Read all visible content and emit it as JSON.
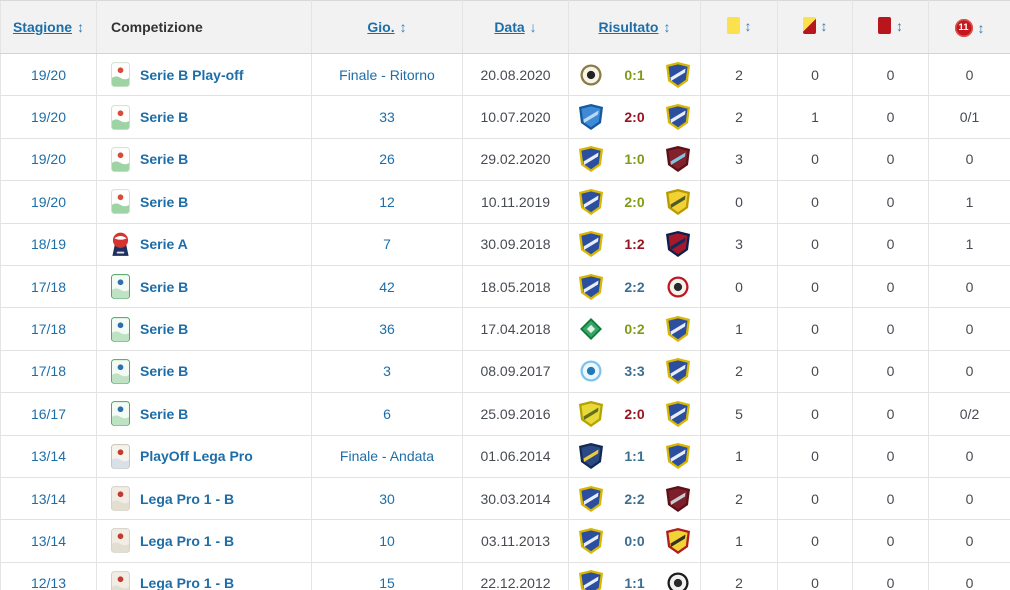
{
  "colors": {
    "link_blue": "#1d6ea8",
    "win_green": "#7f9c16",
    "draw_blue": "#3c6e91",
    "loss_red": "#971420",
    "yellow_card": "#fbe14b",
    "red_card": "#b8151c",
    "penalty_red": "#c4161c",
    "header_bg": "#f2f2f2"
  },
  "table": {
    "header": {
      "season_label": "Stagione",
      "competition_label": "Competizione",
      "matchday_label": "Gio.",
      "date_label": "Data",
      "result_label": "Risultato",
      "penalty_label": "11",
      "sort_both": "↕",
      "sort_down": "↓"
    },
    "rows": [
      {
        "season": "19/20",
        "competition": {
          "name": "Serie B Play-off",
          "icon": {
            "icon": "serie-b-2019-logo-icon",
            "shape": "badge",
            "colors": [
              "#cfe0cf",
              "#ffffff",
              "#9ed3a4",
              "#d84b3a"
            ]
          }
        },
        "matchday": "Finale - Ritorno",
        "date": "20.08.2020",
        "match": {
          "home": {
            "icon": "spezia-crest-icon",
            "shape": "circle",
            "colors": [
              "#8a7a45",
              "#f7f3e8",
              "#222222"
            ]
          },
          "score": "0:1",
          "outcome": "win",
          "away": {
            "icon": "frosinone-crest-icon",
            "shape": "shield",
            "colors": [
              "#d9b600",
              "#2b4f9e",
              "#e8eef8"
            ]
          }
        },
        "cards": {
          "yellow": "2",
          "yellow_red": "0",
          "red": "0",
          "penalty": "0"
        }
      },
      {
        "season": "19/20",
        "competition": {
          "name": "Serie B",
          "icon": {
            "icon": "serie-b-2019-logo-icon",
            "shape": "badge",
            "colors": [
              "#cfe0cf",
              "#ffffff",
              "#9ed3a4",
              "#d84b3a"
            ]
          }
        },
        "matchday": "33",
        "date": "10.07.2020",
        "match": {
          "home": {
            "icon": "empoli-crest-icon",
            "shape": "shield",
            "colors": [
              "#155a9e",
              "#3f8ad6",
              "#bcd9f2"
            ]
          },
          "score": "2:0",
          "outcome": "loss",
          "away": {
            "icon": "frosinone-crest-icon",
            "shape": "shield",
            "colors": [
              "#d9b600",
              "#2b4f9e",
              "#e8eef8"
            ]
          }
        },
        "cards": {
          "yellow": "2",
          "yellow_red": "1",
          "red": "0",
          "penalty": "0/1"
        }
      },
      {
        "season": "19/20",
        "competition": {
          "name": "Serie B",
          "icon": {
            "icon": "serie-b-2019-logo-icon",
            "shape": "badge",
            "colors": [
              "#cfe0cf",
              "#ffffff",
              "#9ed3a4",
              "#d84b3a"
            ]
          }
        },
        "matchday": "26",
        "date": "29.02.2020",
        "match": {
          "home": {
            "icon": "frosinone-crest-icon",
            "shape": "shield",
            "colors": [
              "#d9b600",
              "#2b4f9e",
              "#e8eef8"
            ]
          },
          "score": "1:0",
          "outcome": "win",
          "away": {
            "icon": "salernitana-crest-icon",
            "shape": "shield",
            "colors": [
              "#5c1017",
              "#82222c",
              "#7fc5e0"
            ]
          }
        },
        "cards": {
          "yellow": "3",
          "yellow_red": "0",
          "red": "0",
          "penalty": "0"
        }
      },
      {
        "season": "19/20",
        "competition": {
          "name": "Serie B",
          "icon": {
            "icon": "serie-b-2019-logo-icon",
            "shape": "badge",
            "colors": [
              "#cfe0cf",
              "#ffffff",
              "#9ed3a4",
              "#d84b3a"
            ]
          }
        },
        "matchday": "12",
        "date": "10.11.2019",
        "match": {
          "home": {
            "icon": "frosinone-crest-icon",
            "shape": "shield",
            "colors": [
              "#d9b600",
              "#2b4f9e",
              "#e8eef8"
            ]
          },
          "score": "2:0",
          "outcome": "win",
          "away": {
            "icon": "chievo-verona-crest-icon",
            "shape": "shield",
            "colors": [
              "#b99a00",
              "#f0d234",
              "#50572a"
            ]
          }
        },
        "cards": {
          "yellow": "0",
          "yellow_red": "0",
          "red": "0",
          "penalty": "1"
        }
      },
      {
        "season": "18/19",
        "competition": {
          "name": "Serie A",
          "icon": {
            "icon": "serie-a-logo-icon",
            "shape": "seriea",
            "colors": [
              "#1c2f5e",
              "#d5342f",
              "#ffffff"
            ]
          }
        },
        "matchday": "7",
        "date": "30.09.2018",
        "match": {
          "home": {
            "icon": "frosinone-crest-icon",
            "shape": "shield",
            "colors": [
              "#d9b600",
              "#2b4f9e",
              "#e8eef8"
            ]
          },
          "score": "1:2",
          "outcome": "loss",
          "away": {
            "icon": "genoa-crest-icon",
            "shape": "shield",
            "colors": [
              "#0e1f4d",
              "#a5192b",
              "#152a5c"
            ]
          }
        },
        "cards": {
          "yellow": "3",
          "yellow_red": "0",
          "red": "0",
          "penalty": "1"
        }
      },
      {
        "season": "17/18",
        "competition": {
          "name": "Serie B",
          "icon": {
            "icon": "serie-b-2017-logo-icon",
            "shape": "badge",
            "colors": [
              "#4aa35c",
              "#f4fbf4",
              "#bfe2c4",
              "#2f6fb0"
            ]
          }
        },
        "matchday": "42",
        "date": "18.05.2018",
        "match": {
          "home": {
            "icon": "frosinone-crest-icon",
            "shape": "shield",
            "colors": [
              "#d9b600",
              "#2b4f9e",
              "#e8eef8"
            ]
          },
          "score": "2:2",
          "outcome": "draw",
          "away": {
            "icon": "foggia-crest-icon",
            "shape": "circle",
            "colors": [
              "#c0181f",
              "#f5f3ee",
              "#2a2a2a"
            ]
          }
        },
        "cards": {
          "yellow": "0",
          "yellow_red": "0",
          "red": "0",
          "penalty": "0"
        }
      },
      {
        "season": "17/18",
        "competition": {
          "name": "Serie B",
          "icon": {
            "icon": "serie-b-2017-logo-icon",
            "shape": "badge",
            "colors": [
              "#4aa35c",
              "#f4fbf4",
              "#bfe2c4",
              "#2f6fb0"
            ]
          }
        },
        "matchday": "36",
        "date": "17.04.2018",
        "match": {
          "home": {
            "icon": "avellino-crest-icon",
            "shape": "diamond",
            "colors": [
              "#0f7a3c",
              "#35a866",
              "#e6efe6"
            ]
          },
          "score": "0:2",
          "outcome": "win",
          "away": {
            "icon": "frosinone-crest-icon",
            "shape": "shield",
            "colors": [
              "#d9b600",
              "#2b4f9e",
              "#e8eef8"
            ]
          }
        },
        "cards": {
          "yellow": "1",
          "yellow_red": "0",
          "red": "0",
          "penalty": "0"
        }
      },
      {
        "season": "17/18",
        "competition": {
          "name": "Serie B",
          "icon": {
            "icon": "serie-b-2017-logo-icon",
            "shape": "badge",
            "colors": [
              "#4aa35c",
              "#f4fbf4",
              "#bfe2c4",
              "#2f6fb0"
            ]
          }
        },
        "matchday": "3",
        "date": "08.09.2017",
        "match": {
          "home": {
            "icon": "pescara-crest-icon",
            "shape": "circle",
            "colors": [
              "#7fc3e8",
              "#eaf7fd",
              "#2277b5"
            ]
          },
          "score": "3:3",
          "outcome": "draw",
          "away": {
            "icon": "frosinone-crest-icon",
            "shape": "shield",
            "colors": [
              "#d9b600",
              "#2b4f9e",
              "#e8eef8"
            ]
          }
        },
        "cards": {
          "yellow": "2",
          "yellow_red": "0",
          "red": "0",
          "penalty": "0"
        }
      },
      {
        "season": "16/17",
        "competition": {
          "name": "Serie B",
          "icon": {
            "icon": "serie-b-2017-logo-icon",
            "shape": "badge",
            "colors": [
              "#4aa35c",
              "#f4fbf4",
              "#bfe2c4",
              "#2f6fb0"
            ]
          }
        },
        "matchday": "6",
        "date": "25.09.2016",
        "match": {
          "home": {
            "icon": "hellas-verona-crest-icon",
            "shape": "shield",
            "colors": [
              "#b5a400",
              "#e8d83a",
              "#63701c"
            ]
          },
          "score": "2:0",
          "outcome": "loss",
          "away": {
            "icon": "frosinone-crest-icon",
            "shape": "shield",
            "colors": [
              "#d9b600",
              "#2b4f9e",
              "#e8eef8"
            ]
          }
        },
        "cards": {
          "yellow": "5",
          "yellow_red": "0",
          "red": "0",
          "penalty": "0/2"
        }
      },
      {
        "season": "13/14",
        "competition": {
          "name": "PlayOff Lega Pro",
          "icon": {
            "icon": "playoff-lega-pro-logo-icon",
            "shape": "badge",
            "colors": [
              "#c9c2b5",
              "#f6f3ec",
              "#d8e0ea",
              "#c23b2e"
            ]
          }
        },
        "matchday": "Finale - Andata",
        "date": "01.06.2014",
        "match": {
          "home": {
            "icon": "lecce-crest-icon",
            "shape": "shield",
            "colors": [
              "#122a55",
              "#2a4a85",
              "#efc93c"
            ]
          },
          "score": "1:1",
          "outcome": "draw",
          "away": {
            "icon": "frosinone-crest-icon",
            "shape": "shield",
            "colors": [
              "#d9b600",
              "#2b4f9e",
              "#e8eef8"
            ]
          }
        },
        "cards": {
          "yellow": "1",
          "yellow_red": "0",
          "red": "0",
          "penalty": "0"
        }
      },
      {
        "season": "13/14",
        "competition": {
          "name": "Lega Pro 1 - B",
          "icon": {
            "icon": "lega-pro-logo-icon",
            "shape": "badge",
            "colors": [
              "#d6d0c4",
              "#f1ede4",
              "#e3ded2",
              "#c23b2e"
            ]
          }
        },
        "matchday": "30",
        "date": "30.03.2014",
        "match": {
          "home": {
            "icon": "frosinone-crest-icon",
            "shape": "shield",
            "colors": [
              "#d9b600",
              "#2b4f9e",
              "#e8eef8"
            ]
          },
          "score": "2:2",
          "outcome": "draw",
          "away": {
            "icon": "salernitana-crest-icon",
            "shape": "shield",
            "colors": [
              "#5c1017",
              "#7d1f2a",
              "#c9ced4"
            ]
          }
        },
        "cards": {
          "yellow": "2",
          "yellow_red": "0",
          "red": "0",
          "penalty": "0"
        }
      },
      {
        "season": "13/14",
        "competition": {
          "name": "Lega Pro 1 - B",
          "icon": {
            "icon": "lega-pro-logo-icon",
            "shape": "badge",
            "colors": [
              "#d6d0c4",
              "#f1ede4",
              "#e3ded2",
              "#c23b2e"
            ]
          }
        },
        "matchday": "10",
        "date": "03.11.2013",
        "match": {
          "home": {
            "icon": "frosinone-crest-icon",
            "shape": "shield",
            "colors": [
              "#d9b600",
              "#2b4f9e",
              "#e8eef8"
            ]
          },
          "score": "0:0",
          "outcome": "draw",
          "away": {
            "icon": "benevento-crest-icon",
            "shape": "shield",
            "colors": [
              "#b01c20",
              "#f2d336",
              "#383020"
            ]
          }
        },
        "cards": {
          "yellow": "1",
          "yellow_red": "0",
          "red": "0",
          "penalty": "0"
        }
      },
      {
        "season": "12/13",
        "competition": {
          "name": "Lega Pro 1 - B",
          "icon": {
            "icon": "lega-pro-logo-icon",
            "shape": "badge",
            "colors": [
              "#d6d0c4",
              "#f1ede4",
              "#e3ded2",
              "#c23b2e"
            ]
          }
        },
        "matchday": "15",
        "date": "22.12.2012",
        "match": {
          "home": {
            "icon": "frosinone-crest-icon",
            "shape": "shield",
            "colors": [
              "#d9b600",
              "#2b4f9e",
              "#e8eef8"
            ]
          },
          "score": "1:1",
          "outcome": "draw",
          "away": {
            "icon": "viareggio-crest-icon",
            "shape": "circle",
            "colors": [
              "#1c1c1c",
              "#f2f2f2",
              "#2a2a2a"
            ]
          }
        },
        "cards": {
          "yellow": "2",
          "yellow_red": "0",
          "red": "0",
          "penalty": "0"
        }
      }
    ]
  }
}
